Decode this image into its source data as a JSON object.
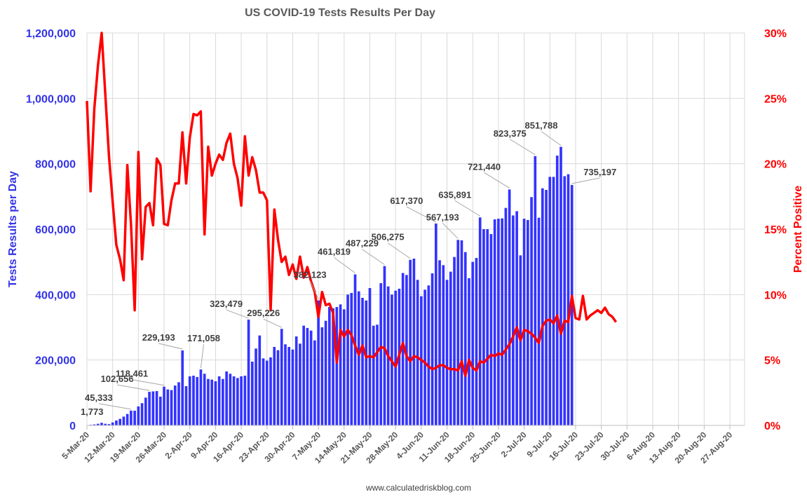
{
  "chart_data": {
    "type": "bar",
    "title": "US COVID-19 Tests Results Per Day",
    "ylabel": "Tests Results per Day",
    "y2label": "Percent Positive",
    "source": "www.calculatedriskblog.com",
    "ylim": [
      0,
      1200000
    ],
    "y2lim": [
      0,
      30
    ],
    "yticks": [
      "0",
      "200,000",
      "400,000",
      "600,000",
      "800,000",
      "1,000,000",
      "1,200,000"
    ],
    "y2ticks": [
      "0%",
      "5%",
      "10%",
      "15%",
      "20%",
      "25%",
      "30%"
    ],
    "xlim": [
      "2020-03-05",
      "2020-08-31"
    ],
    "xticks": [
      "5-Mar-20",
      "12-Mar-20",
      "19-Mar-20",
      "26-Mar-20",
      "2-Apr-20",
      "9-Apr-20",
      "16-Apr-20",
      "23-Apr-20",
      "30-Apr-20",
      "7-May-20",
      "14-May-20",
      "21-May-20",
      "28-May-20",
      "4-Jun-20",
      "11-Jun-20",
      "18-Jun-20",
      "25-Jun-20",
      "2-Jul-20",
      "9-Jul-20",
      "16-Jul-20",
      "23-Jul-20",
      "30-Jul-20",
      "6-Aug-20",
      "13-Aug-20",
      "20-Aug-20",
      "27-Aug-20"
    ],
    "grid": true,
    "series": [
      {
        "name": "",
        "type": "bar",
        "axis": "left",
        "color": "#3333ff",
        "start": "2020-03-06",
        "values": [
          1773,
          3000,
          5000,
          8000,
          5000,
          4000,
          9000,
          15000,
          20000,
          27000,
          35000,
          45333,
          45000,
          58000,
          68000,
          85000,
          102656,
          104000,
          105000,
          88000,
          118461,
          110000,
          108000,
          122000,
          132000,
          229193,
          120000,
          150000,
          152000,
          148000,
          171058,
          158000,
          142000,
          140000,
          135000,
          150000,
          142000,
          165000,
          158000,
          150000,
          145000,
          150000,
          152000,
          323479,
          195000,
          235000,
          275000,
          205000,
          198000,
          208000,
          240000,
          230000,
          295226,
          248000,
          240000,
          232000,
          272000,
          250000,
          305000,
          298000,
          290000,
          260000,
          382123,
          300000,
          320000,
          362000,
          358000,
          362000,
          370000,
          355000,
          400000,
          405000,
          461819,
          410000,
          390000,
          382000,
          420000,
          305000,
          308000,
          435000,
          487229,
          425000,
          400000,
          412000,
          418000,
          466000,
          460000,
          506275,
          510000,
          445000,
          395000,
          415000,
          428000,
          465000,
          617370,
          505000,
          490000,
          445000,
          470000,
          515000,
          567193,
          566000,
          530000,
          450000,
          500000,
          512000,
          635891,
          600000,
          600000,
          585000,
          630000,
          632000,
          633000,
          665000,
          721440,
          642000,
          655000,
          520000,
          632000,
          628000,
          698000,
          823375,
          635000,
          725000,
          720000,
          760000,
          760000,
          825000,
          851788,
          762000,
          768000,
          735197
        ],
        "labeled": [
          [
            0,
            "1,773"
          ],
          [
            11,
            "45,333"
          ],
          [
            16,
            "102,656"
          ],
          [
            20,
            "118,461"
          ],
          [
            25,
            "229,193"
          ],
          [
            30,
            "171,058"
          ],
          [
            43,
            "323,479"
          ],
          [
            52,
            "295,226"
          ],
          [
            62,
            "382,123"
          ],
          [
            72,
            "461,819"
          ],
          [
            80,
            "487,229"
          ],
          [
            87,
            "506,275"
          ],
          [
            94,
            "617,370"
          ],
          [
            100,
            "567,193"
          ],
          [
            106,
            "635,891"
          ],
          [
            114,
            "721,440"
          ],
          [
            121,
            "823,375"
          ],
          [
            128,
            "851,788"
          ],
          [
            131,
            "735,197"
          ]
        ]
      },
      {
        "name": "",
        "type": "line",
        "axis": "right",
        "color": "#ff0000",
        "start": "2020-03-05",
        "values": [
          24.8,
          17.9,
          24.2,
          27.5,
          30.0,
          25.3,
          20.6,
          17.1,
          13.8,
          12.7,
          11.1,
          19.9,
          15.3,
          8.8,
          20.9,
          12.7,
          16.7,
          17.0,
          15.3,
          20.4,
          19.9,
          15.4,
          15.3,
          17.2,
          18.5,
          18.5,
          22.4,
          18.5,
          22.0,
          23.8,
          23.7,
          24.0,
          14.6,
          21.3,
          19.1,
          20.0,
          20.7,
          20.3,
          21.6,
          22.3,
          20.0,
          18.9,
          16.8,
          22.1,
          19.1,
          20.5,
          19.5,
          17.8,
          17.8,
          17.2,
          8.8,
          16.5,
          14.2,
          12.5,
          12.9,
          11.5,
          12.3,
          11.2,
          12.9,
          11.3,
          12.1,
          11.0,
          10.2,
          8.3,
          10.2,
          9.2,
          9.3,
          8.6,
          4.8,
          7.3,
          6.8,
          7.3,
          6.9,
          6.1,
          5.4,
          6.1,
          5.2,
          5.3,
          5.2,
          5.6,
          6.0,
          5.9,
          5.3,
          4.9,
          4.5,
          5.4,
          6.3,
          5.3,
          4.9,
          5.3,
          5.2,
          5.0,
          4.8,
          4.5,
          4.3,
          4.4,
          4.6,
          4.6,
          4.4,
          4.3,
          4.3,
          4.2,
          4.9,
          3.8,
          5.0,
          4.4,
          4.2,
          4.9,
          4.8,
          5.1,
          5.4,
          5.3,
          5.5,
          5.4,
          5.8,
          6.2,
          6.8,
          7.5,
          6.5,
          7.3,
          7.2,
          7.0,
          6.7,
          6.3,
          7.6,
          8.0,
          8.1,
          7.8,
          8.4,
          7.0,
          8.0,
          7.9,
          9.9,
          8.2,
          8.1,
          9.9,
          8.1,
          8.4,
          8.6,
          8.8,
          8.6,
          9.0,
          8.5,
          8.3,
          7.9
        ]
      }
    ]
  }
}
